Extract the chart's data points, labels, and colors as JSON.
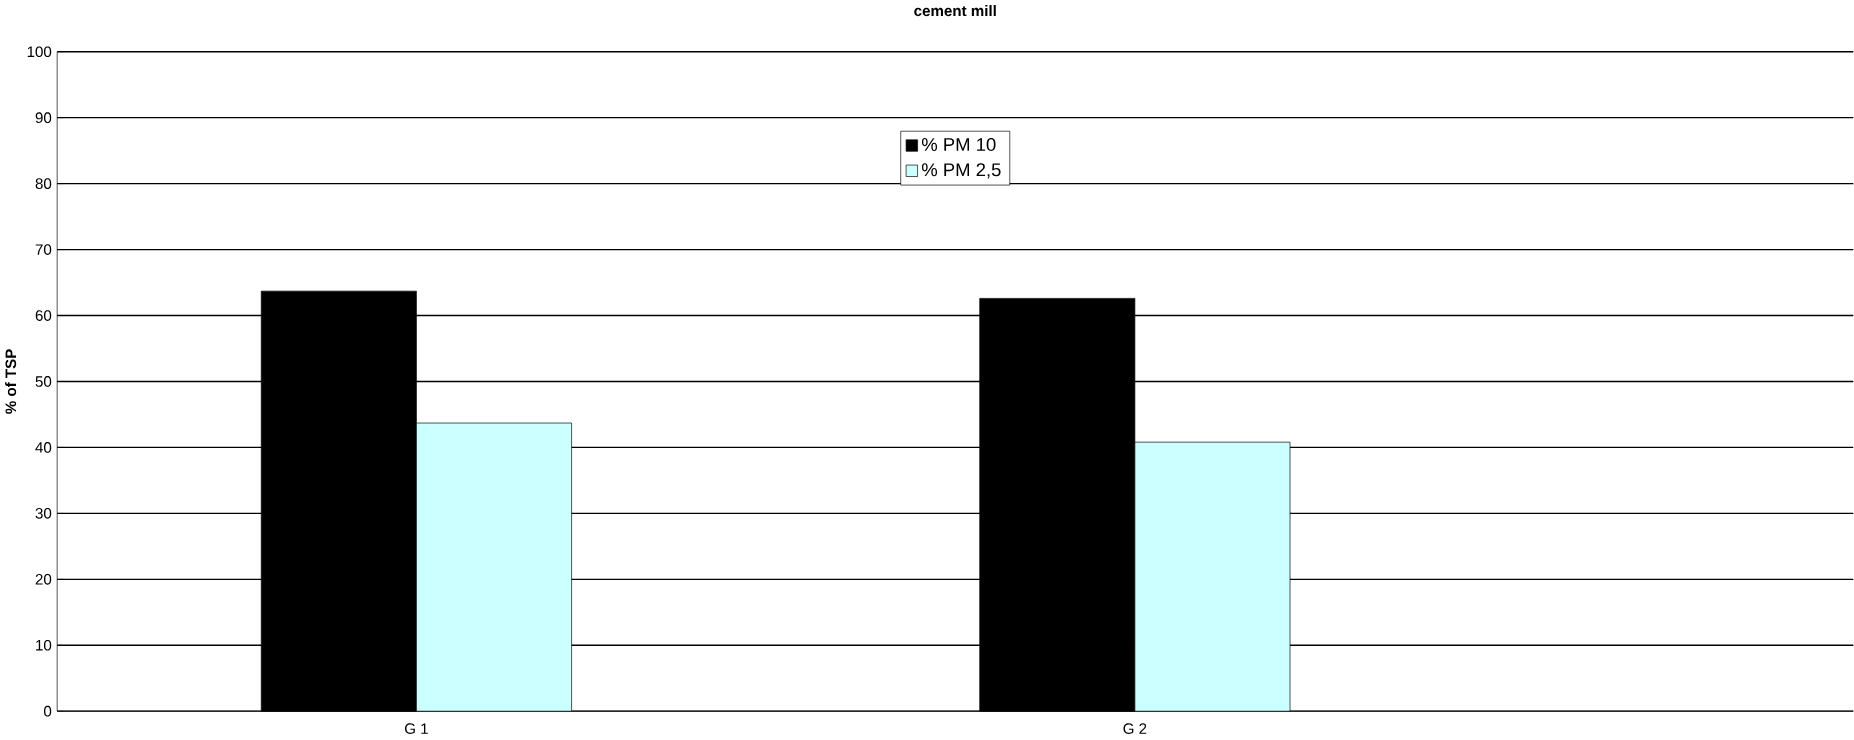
{
  "chart_data": {
    "type": "bar",
    "title": "cement mill",
    "ylabel": "% of TSP",
    "categories": [
      "G 1",
      "G 2"
    ],
    "series": [
      {
        "name": "% PM 10",
        "color": "#000000",
        "values": [
          63.7,
          62.6
        ]
      },
      {
        "name": "% PM 2,5",
        "color": "#ccffff",
        "values": [
          43.7,
          40.8
        ]
      }
    ],
    "ylim": [
      0,
      100
    ],
    "yticks": [
      0,
      10,
      20,
      30,
      40,
      50,
      60,
      70,
      80,
      90,
      100
    ],
    "grid": "y",
    "legend": "top"
  }
}
